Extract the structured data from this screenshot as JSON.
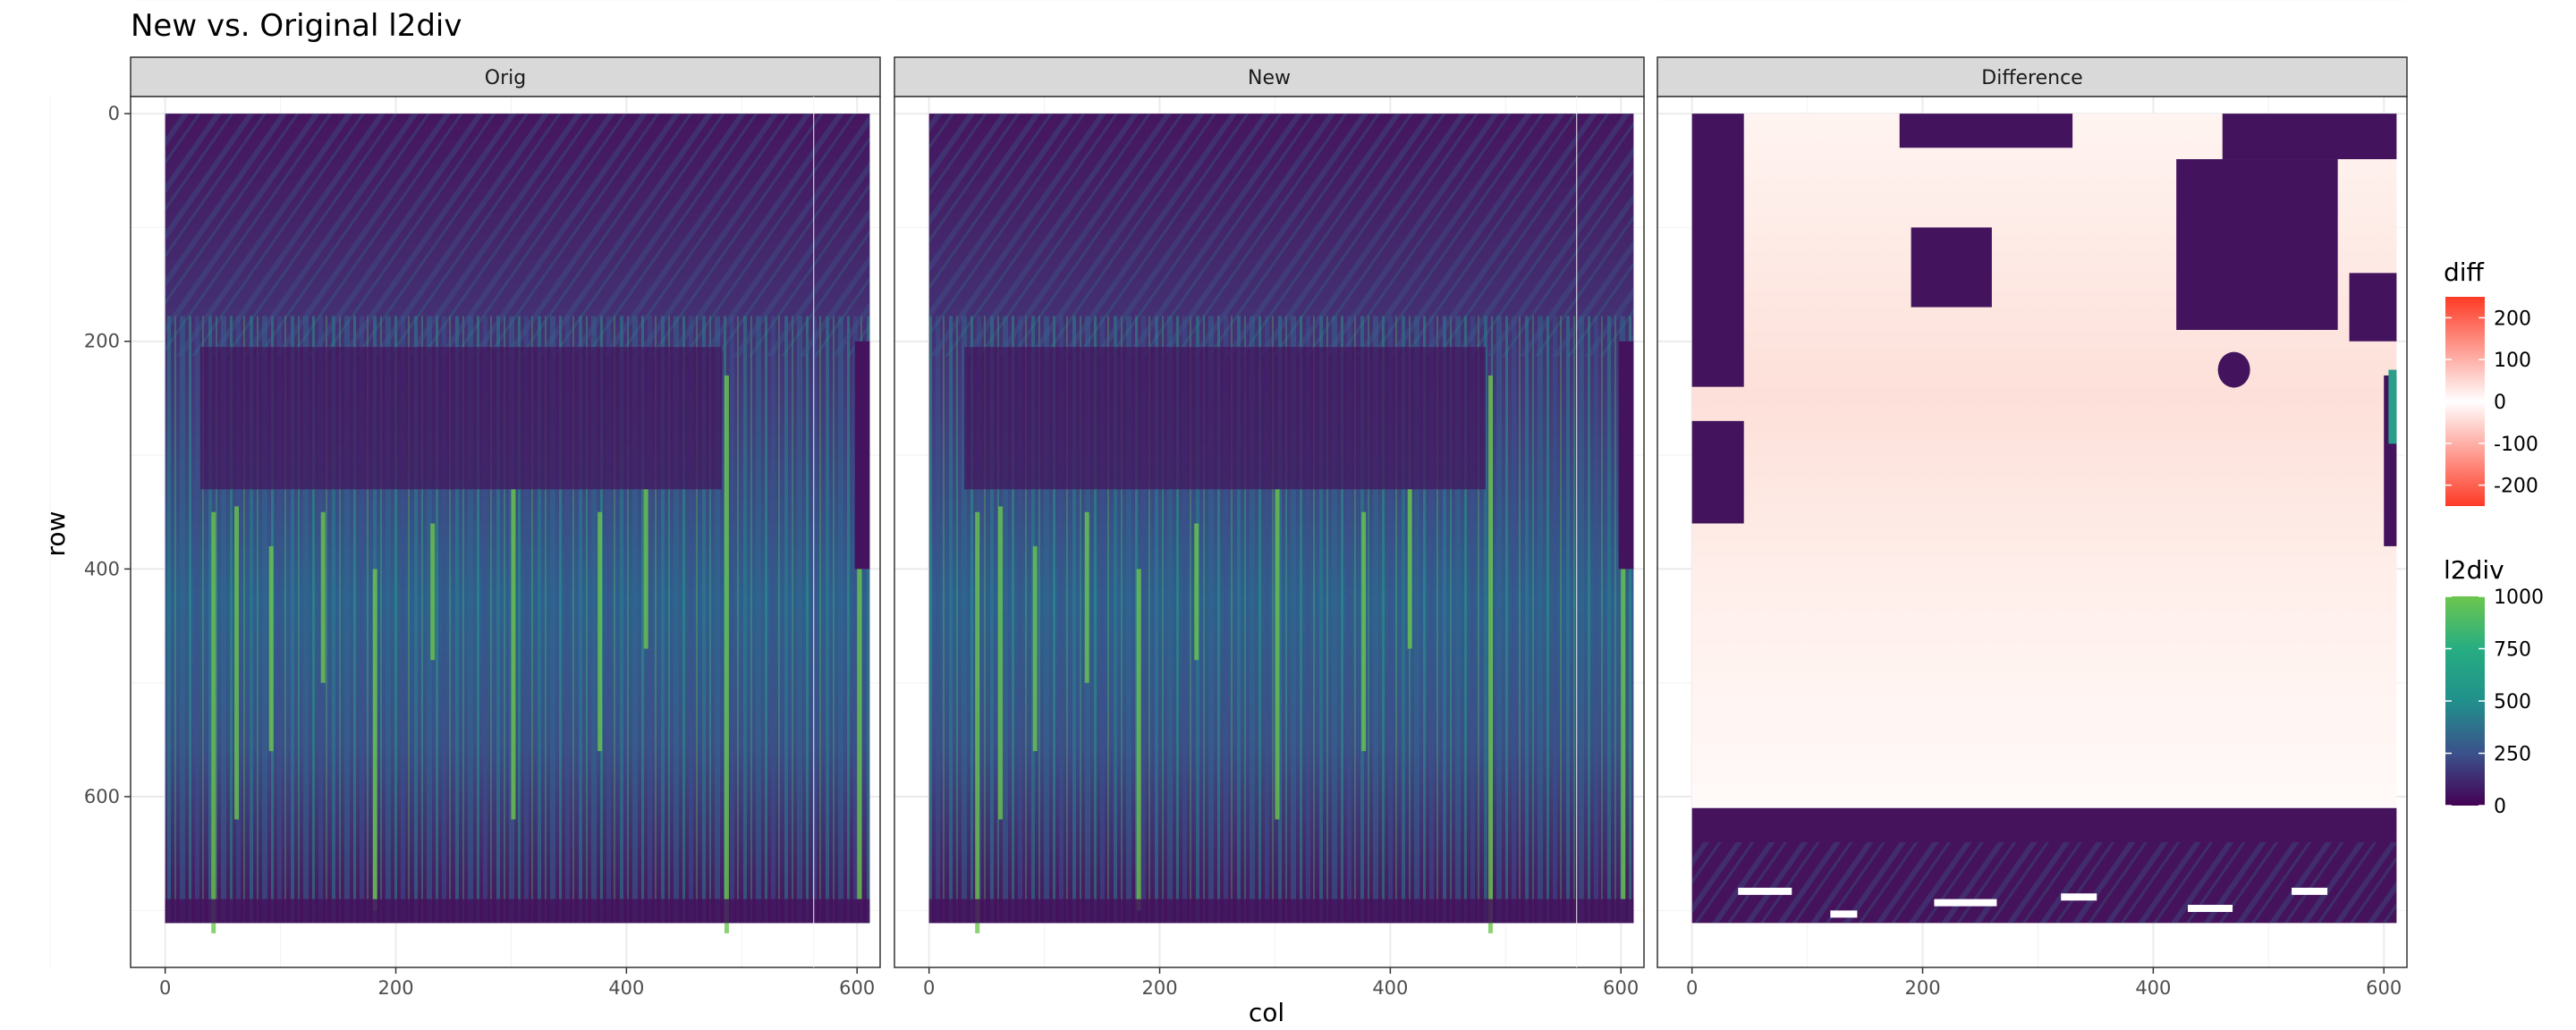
{
  "chart_data": {
    "type": "heatmap",
    "title": "New vs. Original l2div",
    "xlabel": "col",
    "ylabel": "row",
    "x_ticks": [
      0,
      200,
      400,
      600
    ],
    "y_ticks": [
      0,
      200,
      400,
      600
    ],
    "xlim": [
      -30,
      620
    ],
    "ylim": [
      750,
      -15
    ],
    "grid": true,
    "panels": [
      {
        "name": "Orig",
        "fill": "l2div"
      },
      {
        "name": "New",
        "fill": "l2div"
      },
      {
        "name": "Difference",
        "fill": "diff"
      }
    ],
    "legends": [
      {
        "title": "diff",
        "placement": "right",
        "breaks": [
          200,
          100,
          0,
          -100,
          -200
        ],
        "colors": [
          "#fd3a25",
          "#ffffff",
          "#fd3a25"
        ],
        "range": [
          -250,
          250
        ]
      },
      {
        "title": "l2div",
        "placement": "right",
        "breaks": [
          1000,
          750,
          500,
          250,
          0
        ],
        "colors": [
          "#440154",
          "#3b528b",
          "#21908c",
          "#27ad81",
          "#6cc64e"
        ],
        "range": [
          0,
          1000
        ]
      }
    ]
  }
}
